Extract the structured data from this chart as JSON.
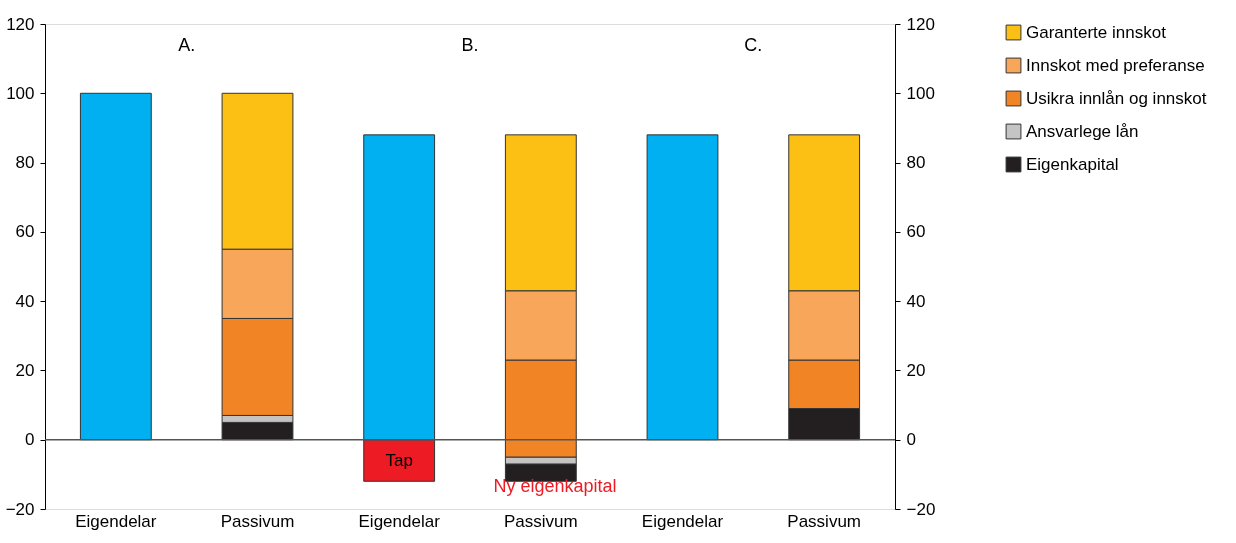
{
  "chart_data": {
    "type": "bar",
    "categories": [
      "Eigendelar",
      "Passivum",
      "Eigendelar",
      "Passivum",
      "Eigendelar",
      "Passivum"
    ],
    "series": [
      {
        "name": "Eigenkapital",
        "color": "#231f20",
        "values": [
          null,
          5,
          null,
          5,
          null,
          9
        ],
        "base": [
          null,
          0,
          null,
          -12,
          null,
          0
        ]
      },
      {
        "name": "Ansvarlege lån",
        "color": "#c4c4c4",
        "values": [
          null,
          2,
          null,
          2,
          null,
          null
        ],
        "base": [
          null,
          5,
          null,
          -7,
          null,
          null
        ]
      },
      {
        "name": "Usikra innlån og innskot",
        "color": "#f18424",
        "values": [
          null,
          28,
          null,
          28,
          null,
          14
        ],
        "base": [
          null,
          7,
          null,
          -5,
          null,
          9
        ]
      },
      {
        "name": "Innskot med preferanse",
        "color": "#f7a65a",
        "values": [
          null,
          20,
          null,
          20,
          null,
          20
        ],
        "base": [
          null,
          35,
          null,
          23,
          null,
          23
        ]
      },
      {
        "name": "Garanterte innskot",
        "color": "#fcc015",
        "values": [
          null,
          45,
          null,
          45,
          null,
          45
        ],
        "base": [
          null,
          55,
          null,
          43,
          null,
          43
        ]
      },
      {
        "color": "#00b0f0",
        "values": [
          100,
          null,
          88,
          null,
          88,
          null
        ],
        "base": [
          0,
          null,
          0,
          null,
          0,
          null
        ]
      },
      {
        "name": "Tap",
        "color": "#ed1c24",
        "values": [
          null,
          null,
          -12,
          null,
          null,
          null
        ],
        "base": [
          null,
          null,
          0,
          null,
          null,
          null
        ]
      }
    ],
    "ylim": [
      -20,
      120
    ],
    "yticks": [
      -20,
      0,
      20,
      40,
      60,
      80,
      100,
      120
    ],
    "y2lim": [
      -20,
      120
    ],
    "y2ticks": [
      -20,
      0,
      20,
      40,
      60,
      80,
      100,
      120
    ],
    "ref_lines": [
      {
        "axis": "y",
        "value": 0
      }
    ],
    "annotations": [
      "A.",
      "B.",
      "C.",
      "Ny eigenkapital"
    ],
    "grid": false,
    "legend": "right"
  }
}
